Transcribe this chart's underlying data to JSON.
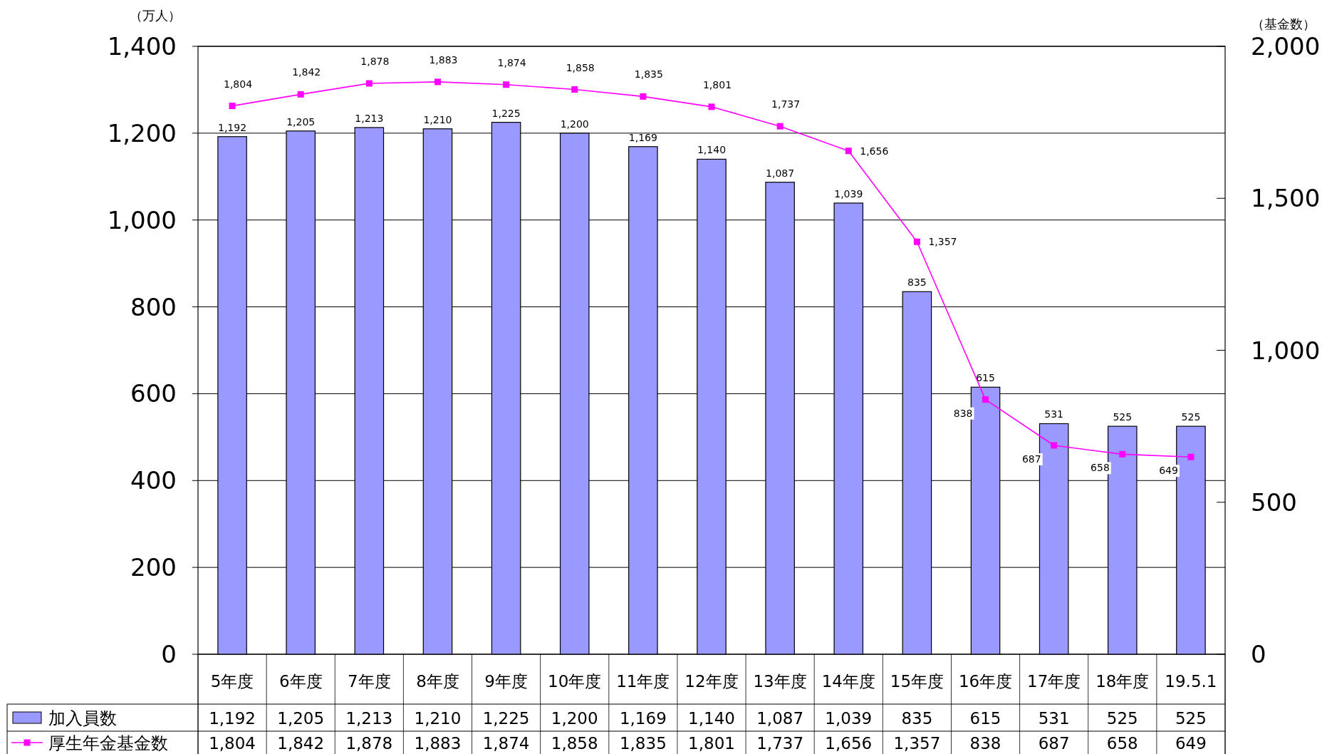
{
  "chart_data": {
    "type": "bar",
    "categories": [
      "5年度",
      "6年度",
      "7年度",
      "8年度",
      "9年度",
      "10年度",
      "11年度",
      "12年度",
      "13年度",
      "14年度",
      "15年度",
      "16年度",
      "17年度",
      "18年度",
      "19.5.1"
    ],
    "series": [
      {
        "name": "加入員数",
        "color": "#9999ff",
        "values": [
          1192,
          1205,
          1213,
          1210,
          1225,
          1200,
          1169,
          1140,
          1087,
          1039,
          835,
          615,
          531,
          525,
          525
        ],
        "value_labels": [
          "1,192",
          "1,205",
          "1,213",
          "1,210",
          "1,225",
          "1,200",
          "1,169",
          "1,140",
          "1,087",
          "1,039",
          "835",
          "615",
          "531",
          "525",
          "525"
        ]
      },
      {
        "name": "厚生年金基金数",
        "type": "line",
        "axis": "y2",
        "color": "#ff00ff",
        "values": [
          1804,
          1842,
          1878,
          1883,
          1874,
          1858,
          1835,
          1801,
          1737,
          1656,
          1357,
          838,
          687,
          658,
          649
        ],
        "value_labels": [
          "1,804",
          "1,842",
          "1,878",
          "1,883",
          "1,874",
          "1,858",
          "1,835",
          "1,801",
          "1,737",
          "1,656",
          "1,357",
          "838",
          "687",
          "658",
          "649"
        ]
      }
    ],
    "ylabel": "（万人）",
    "y2label": "（基金数）",
    "ylim": [
      0,
      1400
    ],
    "yticks": [
      {
        "value": 0,
        "label": "0"
      },
      {
        "value": 200,
        "label": "200"
      },
      {
        "value": 400,
        "label": "400"
      },
      {
        "value": 600,
        "label": "600"
      },
      {
        "value": 800,
        "label": "800"
      },
      {
        "value": 1000,
        "label": "1,000"
      },
      {
        "value": 1200,
        "label": "1,200"
      },
      {
        "value": 1400,
        "label": "1,400"
      }
    ],
    "y2lim": [
      0,
      2000
    ],
    "y2ticks": [
      {
        "value": 0,
        "label": "0"
      },
      {
        "value": 500,
        "label": "500"
      },
      {
        "value": 1000,
        "label": "1,000"
      },
      {
        "value": 1500,
        "label": "1,500"
      },
      {
        "value": 2000,
        "label": "2,000"
      }
    ],
    "grid": "y",
    "legend": "bottom",
    "marker": "square"
  }
}
